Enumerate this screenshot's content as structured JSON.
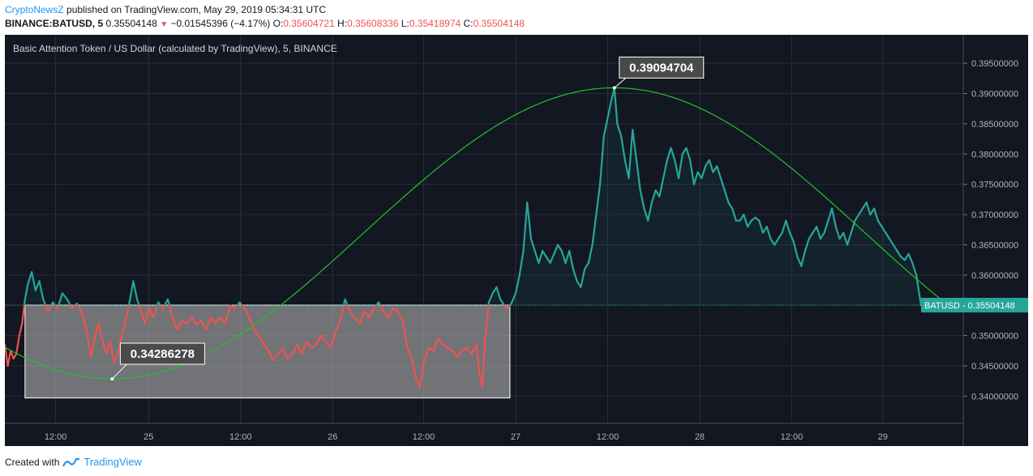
{
  "header": {
    "publisher": "CryptoNewsZ",
    "published_text": "published on TradingView.com, May 29, 2019 05:34:31 UTC",
    "symbol": "BINANCE:BATUSD, 5",
    "last": "0.35504148",
    "change": "−0.01545396 (−4.17%)",
    "o_label": "O:",
    "o_value": "0.35604721",
    "h_label": "H:",
    "h_value": "0.35608336",
    "l_label": "L:",
    "l_value": "0.35418974",
    "c_label": "C:",
    "c_value": "0.35504148"
  },
  "footer": {
    "created_with": "Created with",
    "brand": "TradingView"
  },
  "colors": {
    "background": "#131722",
    "up": "#26a69a",
    "down": "#ef5350",
    "curve": "#22c22c",
    "box_fill": "#b0b0b0",
    "grid": "#2a2e39",
    "label_bg": "#4a4a4a"
  },
  "chart_data": {
    "type": "line",
    "title": "Basic Attention Token / US Dollar (calculated by TradingView), 5, BINANCE",
    "y_range": [
      0.3355,
      0.3997
    ],
    "y_ticks": [
      "0.39500000",
      "0.39000000",
      "0.38500000",
      "0.38000000",
      "0.37500000",
      "0.37000000",
      "0.36500000",
      "0.36000000",
      "0.35500000",
      "0.35000000",
      "0.34500000",
      "0.34000000"
    ],
    "x_range": [
      0,
      100
    ],
    "x_ticks": [
      {
        "x": 5.3,
        "label": "12:00"
      },
      {
        "x": 15.0,
        "label": "25"
      },
      {
        "x": 24.6,
        "label": "12:00"
      },
      {
        "x": 34.2,
        "label": "26"
      },
      {
        "x": 43.7,
        "label": "12:00"
      },
      {
        "x": 53.3,
        "label": "27"
      },
      {
        "x": 62.9,
        "label": "12:00"
      },
      {
        "x": 72.5,
        "label": "28"
      },
      {
        "x": 82.1,
        "label": "12:00"
      },
      {
        "x": 91.6,
        "label": "29"
      }
    ],
    "series": [
      {
        "name": "BATUSD",
        "points": [
          [
            0,
            0.3485
          ],
          [
            0.3,
            0.345
          ],
          [
            0.6,
            0.3475
          ],
          [
            0.9,
            0.3462
          ],
          [
            1.2,
            0.347
          ],
          [
            1.5,
            0.35
          ],
          [
            1.8,
            0.352
          ],
          [
            2.1,
            0.356
          ],
          [
            2.4,
            0.3585
          ],
          [
            2.8,
            0.3605
          ],
          [
            3.2,
            0.3575
          ],
          [
            3.6,
            0.359
          ],
          [
            4.0,
            0.356
          ],
          [
            4.5,
            0.354
          ],
          [
            5.0,
            0.3555
          ],
          [
            5.5,
            0.3545
          ],
          [
            6.0,
            0.357
          ],
          [
            6.5,
            0.356
          ],
          [
            7.0,
            0.3545
          ],
          [
            7.5,
            0.3553
          ],
          [
            8.0,
            0.354
          ],
          [
            8.5,
            0.351
          ],
          [
            9.0,
            0.3465
          ],
          [
            9.4,
            0.35
          ],
          [
            9.8,
            0.352
          ],
          [
            10.2,
            0.349
          ],
          [
            10.6,
            0.347
          ],
          [
            11.0,
            0.349
          ],
          [
            11.4,
            0.3455
          ],
          [
            11.8,
            0.347
          ],
          [
            12.2,
            0.35
          ],
          [
            12.6,
            0.3525
          ],
          [
            13.0,
            0.3555
          ],
          [
            13.4,
            0.359
          ],
          [
            13.8,
            0.356
          ],
          [
            14.2,
            0.354
          ],
          [
            14.6,
            0.352
          ],
          [
            15.0,
            0.3545
          ],
          [
            15.5,
            0.353
          ],
          [
            16.0,
            0.3555
          ],
          [
            16.5,
            0.3545
          ],
          [
            17.0,
            0.356
          ],
          [
            17.5,
            0.353
          ],
          [
            18.0,
            0.351
          ],
          [
            18.5,
            0.3525
          ],
          [
            19.0,
            0.352
          ],
          [
            19.5,
            0.353
          ],
          [
            20.0,
            0.3518
          ],
          [
            20.5,
            0.3525
          ],
          [
            21.0,
            0.351
          ],
          [
            21.5,
            0.353
          ],
          [
            22.0,
            0.352
          ],
          [
            22.5,
            0.353
          ],
          [
            23.0,
            0.352
          ],
          [
            23.5,
            0.355
          ],
          [
            24.0,
            0.3545
          ],
          [
            24.5,
            0.3555
          ],
          [
            25.0,
            0.3545
          ],
          [
            25.5,
            0.353
          ],
          [
            26.0,
            0.351
          ],
          [
            26.5,
            0.35
          ],
          [
            27.0,
            0.3485
          ],
          [
            27.5,
            0.3475
          ],
          [
            28.0,
            0.346
          ],
          [
            28.5,
            0.347
          ],
          [
            29.0,
            0.3478
          ],
          [
            29.5,
            0.3462
          ],
          [
            30.0,
            0.347
          ],
          [
            30.5,
            0.3485
          ],
          [
            31.0,
            0.347
          ],
          [
            31.5,
            0.349
          ],
          [
            32.0,
            0.348
          ],
          [
            32.5,
            0.3485
          ],
          [
            33.0,
            0.35
          ],
          [
            33.5,
            0.349
          ],
          [
            34.0,
            0.348
          ],
          [
            34.5,
            0.3505
          ],
          [
            35.0,
            0.3525
          ],
          [
            35.5,
            0.356
          ],
          [
            36.0,
            0.354
          ],
          [
            36.5,
            0.353
          ],
          [
            37.0,
            0.352
          ],
          [
            37.5,
            0.354
          ],
          [
            38.0,
            0.353
          ],
          [
            38.5,
            0.3545
          ],
          [
            39.0,
            0.3555
          ],
          [
            39.5,
            0.354
          ],
          [
            40.0,
            0.353
          ],
          [
            40.5,
            0.3545
          ],
          [
            41.0,
            0.354
          ],
          [
            41.5,
            0.3525
          ],
          [
            42.0,
            0.348
          ],
          [
            42.5,
            0.346
          ],
          [
            42.9,
            0.343
          ],
          [
            43.3,
            0.3415
          ],
          [
            43.7,
            0.3455
          ],
          [
            44.2,
            0.348
          ],
          [
            44.7,
            0.3475
          ],
          [
            45.2,
            0.3495
          ],
          [
            45.7,
            0.3485
          ],
          [
            46.2,
            0.348
          ],
          [
            46.7,
            0.3475
          ],
          [
            47.2,
            0.3465
          ],
          [
            47.7,
            0.3475
          ],
          [
            48.2,
            0.348
          ],
          [
            48.7,
            0.347
          ],
          [
            49.2,
            0.3485
          ],
          [
            49.5,
            0.344
          ],
          [
            49.8,
            0.3415
          ],
          [
            50.1,
            0.349
          ],
          [
            50.5,
            0.3555
          ],
          [
            50.9,
            0.357
          ],
          [
            51.3,
            0.358
          ],
          [
            51.7,
            0.356
          ],
          [
            52.1,
            0.355
          ],
          [
            52.5,
            0.3545
          ],
          [
            52.9,
            0.3555
          ],
          [
            53.3,
            0.357
          ],
          [
            53.7,
            0.36
          ],
          [
            54.1,
            0.364
          ],
          [
            54.5,
            0.372
          ],
          [
            54.9,
            0.366
          ],
          [
            55.3,
            0.364
          ],
          [
            55.7,
            0.362
          ],
          [
            56.1,
            0.364
          ],
          [
            56.5,
            0.363
          ],
          [
            56.9,
            0.362
          ],
          [
            57.3,
            0.3635
          ],
          [
            57.7,
            0.365
          ],
          [
            58.1,
            0.364
          ],
          [
            58.5,
            0.362
          ],
          [
            58.9,
            0.364
          ],
          [
            59.3,
            0.361
          ],
          [
            59.7,
            0.359
          ],
          [
            60.1,
            0.358
          ],
          [
            60.5,
            0.361
          ],
          [
            60.9,
            0.362
          ],
          [
            61.3,
            0.365
          ],
          [
            61.7,
            0.37
          ],
          [
            62.1,
            0.375
          ],
          [
            62.5,
            0.383
          ],
          [
            62.9,
            0.386
          ],
          [
            63.3,
            0.389
          ],
          [
            63.6,
            0.3909
          ],
          [
            63.9,
            0.385
          ],
          [
            64.3,
            0.383
          ],
          [
            64.7,
            0.379
          ],
          [
            65.1,
            0.376
          ],
          [
            65.5,
            0.384
          ],
          [
            65.9,
            0.379
          ],
          [
            66.3,
            0.374
          ],
          [
            66.7,
            0.371
          ],
          [
            67.1,
            0.369
          ],
          [
            67.5,
            0.372
          ],
          [
            67.9,
            0.374
          ],
          [
            68.3,
            0.373
          ],
          [
            68.7,
            0.376
          ],
          [
            69.1,
            0.379
          ],
          [
            69.5,
            0.381
          ],
          [
            69.9,
            0.379
          ],
          [
            70.3,
            0.376
          ],
          [
            70.7,
            0.38
          ],
          [
            71.1,
            0.381
          ],
          [
            71.5,
            0.379
          ],
          [
            71.9,
            0.375
          ],
          [
            72.3,
            0.377
          ],
          [
            72.7,
            0.376
          ],
          [
            73.1,
            0.378
          ],
          [
            73.5,
            0.379
          ],
          [
            73.9,
            0.377
          ],
          [
            74.3,
            0.378
          ],
          [
            74.7,
            0.376
          ],
          [
            75.1,
            0.374
          ],
          [
            75.5,
            0.372
          ],
          [
            75.9,
            0.371
          ],
          [
            76.3,
            0.369
          ],
          [
            76.7,
            0.369
          ],
          [
            77.1,
            0.37
          ],
          [
            77.5,
            0.368
          ],
          [
            77.9,
            0.369
          ],
          [
            78.3,
            0.3695
          ],
          [
            78.7,
            0.369
          ],
          [
            79.1,
            0.367
          ],
          [
            79.5,
            0.368
          ],
          [
            79.9,
            0.366
          ],
          [
            80.3,
            0.365
          ],
          [
            80.7,
            0.366
          ],
          [
            81.1,
            0.367
          ],
          [
            81.5,
            0.369
          ],
          [
            81.9,
            0.367
          ],
          [
            82.3,
            0.3655
          ],
          [
            82.7,
            0.363
          ],
          [
            83.1,
            0.3615
          ],
          [
            83.5,
            0.364
          ],
          [
            83.9,
            0.366
          ],
          [
            84.3,
            0.367
          ],
          [
            84.7,
            0.368
          ],
          [
            85.1,
            0.366
          ],
          [
            85.5,
            0.367
          ],
          [
            85.9,
            0.369
          ],
          [
            86.3,
            0.371
          ],
          [
            86.7,
            0.368
          ],
          [
            87.1,
            0.366
          ],
          [
            87.5,
            0.367
          ],
          [
            87.9,
            0.365
          ],
          [
            88.3,
            0.367
          ],
          [
            88.7,
            0.369
          ],
          [
            89.1,
            0.37
          ],
          [
            89.5,
            0.371
          ],
          [
            89.9,
            0.372
          ],
          [
            90.3,
            0.37
          ],
          [
            90.7,
            0.371
          ],
          [
            91.1,
            0.369
          ],
          [
            91.5,
            0.368
          ],
          [
            91.9,
            0.367
          ],
          [
            92.3,
            0.366
          ],
          [
            92.7,
            0.365
          ],
          [
            93.1,
            0.364
          ],
          [
            93.5,
            0.363
          ],
          [
            93.9,
            0.3625
          ],
          [
            94.3,
            0.3635
          ],
          [
            94.7,
            0.362
          ],
          [
            95.1,
            0.36
          ],
          [
            95.4,
            0.357
          ],
          [
            95.6,
            0.355
          ]
        ]
      }
    ],
    "base_line": 0.35504148,
    "price_label": {
      "text": "BATUSD · 0.35504148",
      "value": 0.35504148
    },
    "annotations": [
      {
        "text": "0.39094704",
        "x": 63.6,
        "y": 0.39094704
      },
      {
        "text": "0.34286278",
        "x": 11.2,
        "y": 0.34286278
      }
    ],
    "curve": {
      "x_start": 0,
      "x_peak": 63.6,
      "y_peak": 0.39094704,
      "x_min": 11.2,
      "y_min": 0.34286278,
      "x_end": 98
    },
    "range_box": {
      "x_start": 2.1,
      "x_end": 52.7,
      "y_top": 0.35504148,
      "y_bottom": 0.3397
    }
  }
}
